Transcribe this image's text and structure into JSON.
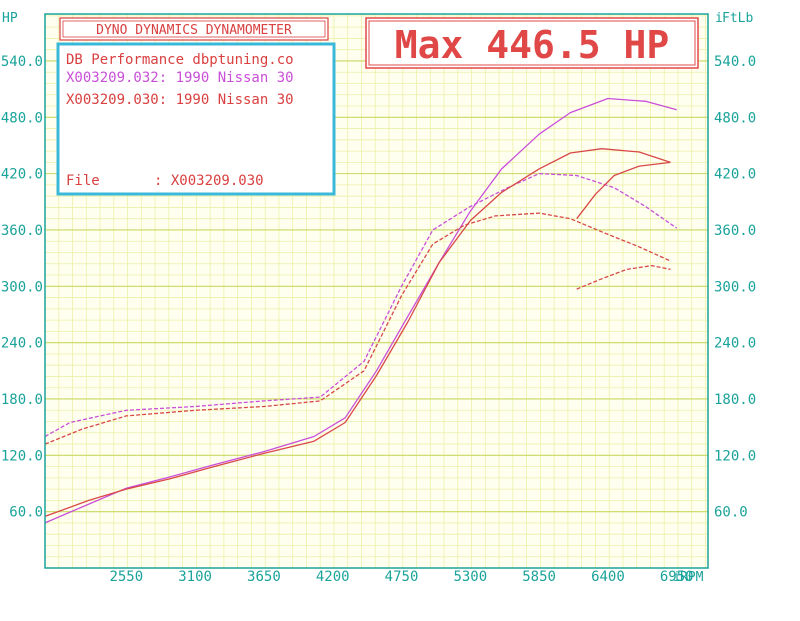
{
  "chart_data": {
    "type": "line",
    "title": "DYNO DYNAMICS DYNAMOMETER",
    "max_label": "Max 446.5 HP",
    "xlabel": "RPM",
    "ylabel_left": "HP",
    "ylabel_right": "FtLb",
    "x_ticks": [
      "2550",
      "3100",
      "3650",
      "4200",
      "4750",
      "5300",
      "5850",
      "6400",
      "6950"
    ],
    "y_ticks_left": [
      "60.0",
      "120.0",
      "180.0",
      "240.0",
      "300.0",
      "360.0",
      "420.0",
      "480.0",
      "540.0"
    ],
    "y_ticks_right": [
      "60.0",
      "120.0",
      "180.0",
      "240.0",
      "300.0",
      "360.0",
      "420.0",
      "480.0",
      "540.0"
    ],
    "xlim": [
      1900,
      7200
    ],
    "ylim": [
      0,
      590
    ],
    "grid": true,
    "info": {
      "header": "DB Performance dbptuning.co",
      "runs": [
        "X003209.032: 1990 Nissan 30",
        "X003209.030: 1990 Nissan 30"
      ],
      "file_label": "File",
      "file_value": ": X003209.030"
    },
    "series": [
      {
        "id": "run032-power",
        "color": "#c94fd8",
        "dashed": false,
        "x": [
          1900,
          2250,
          2550,
          2900,
          3250,
          3650,
          4050,
          4300,
          4550,
          4800,
          5050,
          5300,
          5550,
          5850,
          6100,
          6400,
          6700,
          6950
        ],
        "y": [
          48,
          68,
          85,
          97,
          110,
          124,
          140,
          160,
          210,
          268,
          325,
          380,
          425,
          462,
          485,
          500,
          497,
          488
        ]
      },
      {
        "id": "run032-torque",
        "color": "#c94fd8",
        "dashed": true,
        "x": [
          1900,
          2100,
          2550,
          3100,
          3650,
          4100,
          4450,
          4750,
          5000,
          5300,
          5600,
          5850,
          6150,
          6450,
          6700,
          6950
        ],
        "y": [
          140,
          155,
          168,
          172,
          178,
          182,
          220,
          300,
          360,
          385,
          405,
          420,
          418,
          405,
          385,
          362
        ]
      },
      {
        "id": "run030-power",
        "color": "#d84848",
        "dashed": false,
        "x": [
          1900,
          2250,
          2550,
          2900,
          3250,
          3650,
          4050,
          4300,
          4550,
          4800,
          5050,
          5300,
          5550,
          5850,
          6100,
          6350,
          6650,
          6900
        ],
        "y": [
          55,
          72,
          84,
          95,
          108,
          122,
          135,
          155,
          205,
          262,
          325,
          370,
          400,
          425,
          442,
          446.5,
          443,
          432
        ]
      },
      {
        "id": "run030-torque",
        "color": "#d84848",
        "dashed": true,
        "x": [
          1900,
          2200,
          2550,
          3100,
          3650,
          4100,
          4450,
          4750,
          5000,
          5250,
          5500,
          5850,
          6100,
          6350,
          6650,
          6900
        ],
        "y": [
          132,
          148,
          162,
          168,
          172,
          178,
          210,
          290,
          345,
          365,
          375,
          378,
          372,
          358,
          342,
          327
        ]
      },
      {
        "id": "run030-power-overlay",
        "color": "#d84848",
        "dashed": false,
        "x": [
          6150,
          6300,
          6450,
          6650,
          6900
        ],
        "y": [
          372,
          398,
          418,
          428,
          432
        ]
      },
      {
        "id": "run030-torque-overlay",
        "color": "#d84848",
        "dashed": true,
        "x": [
          6150,
          6350,
          6550,
          6750,
          6900
        ],
        "y": [
          297,
          308,
          318,
          322,
          318
        ]
      }
    ]
  }
}
